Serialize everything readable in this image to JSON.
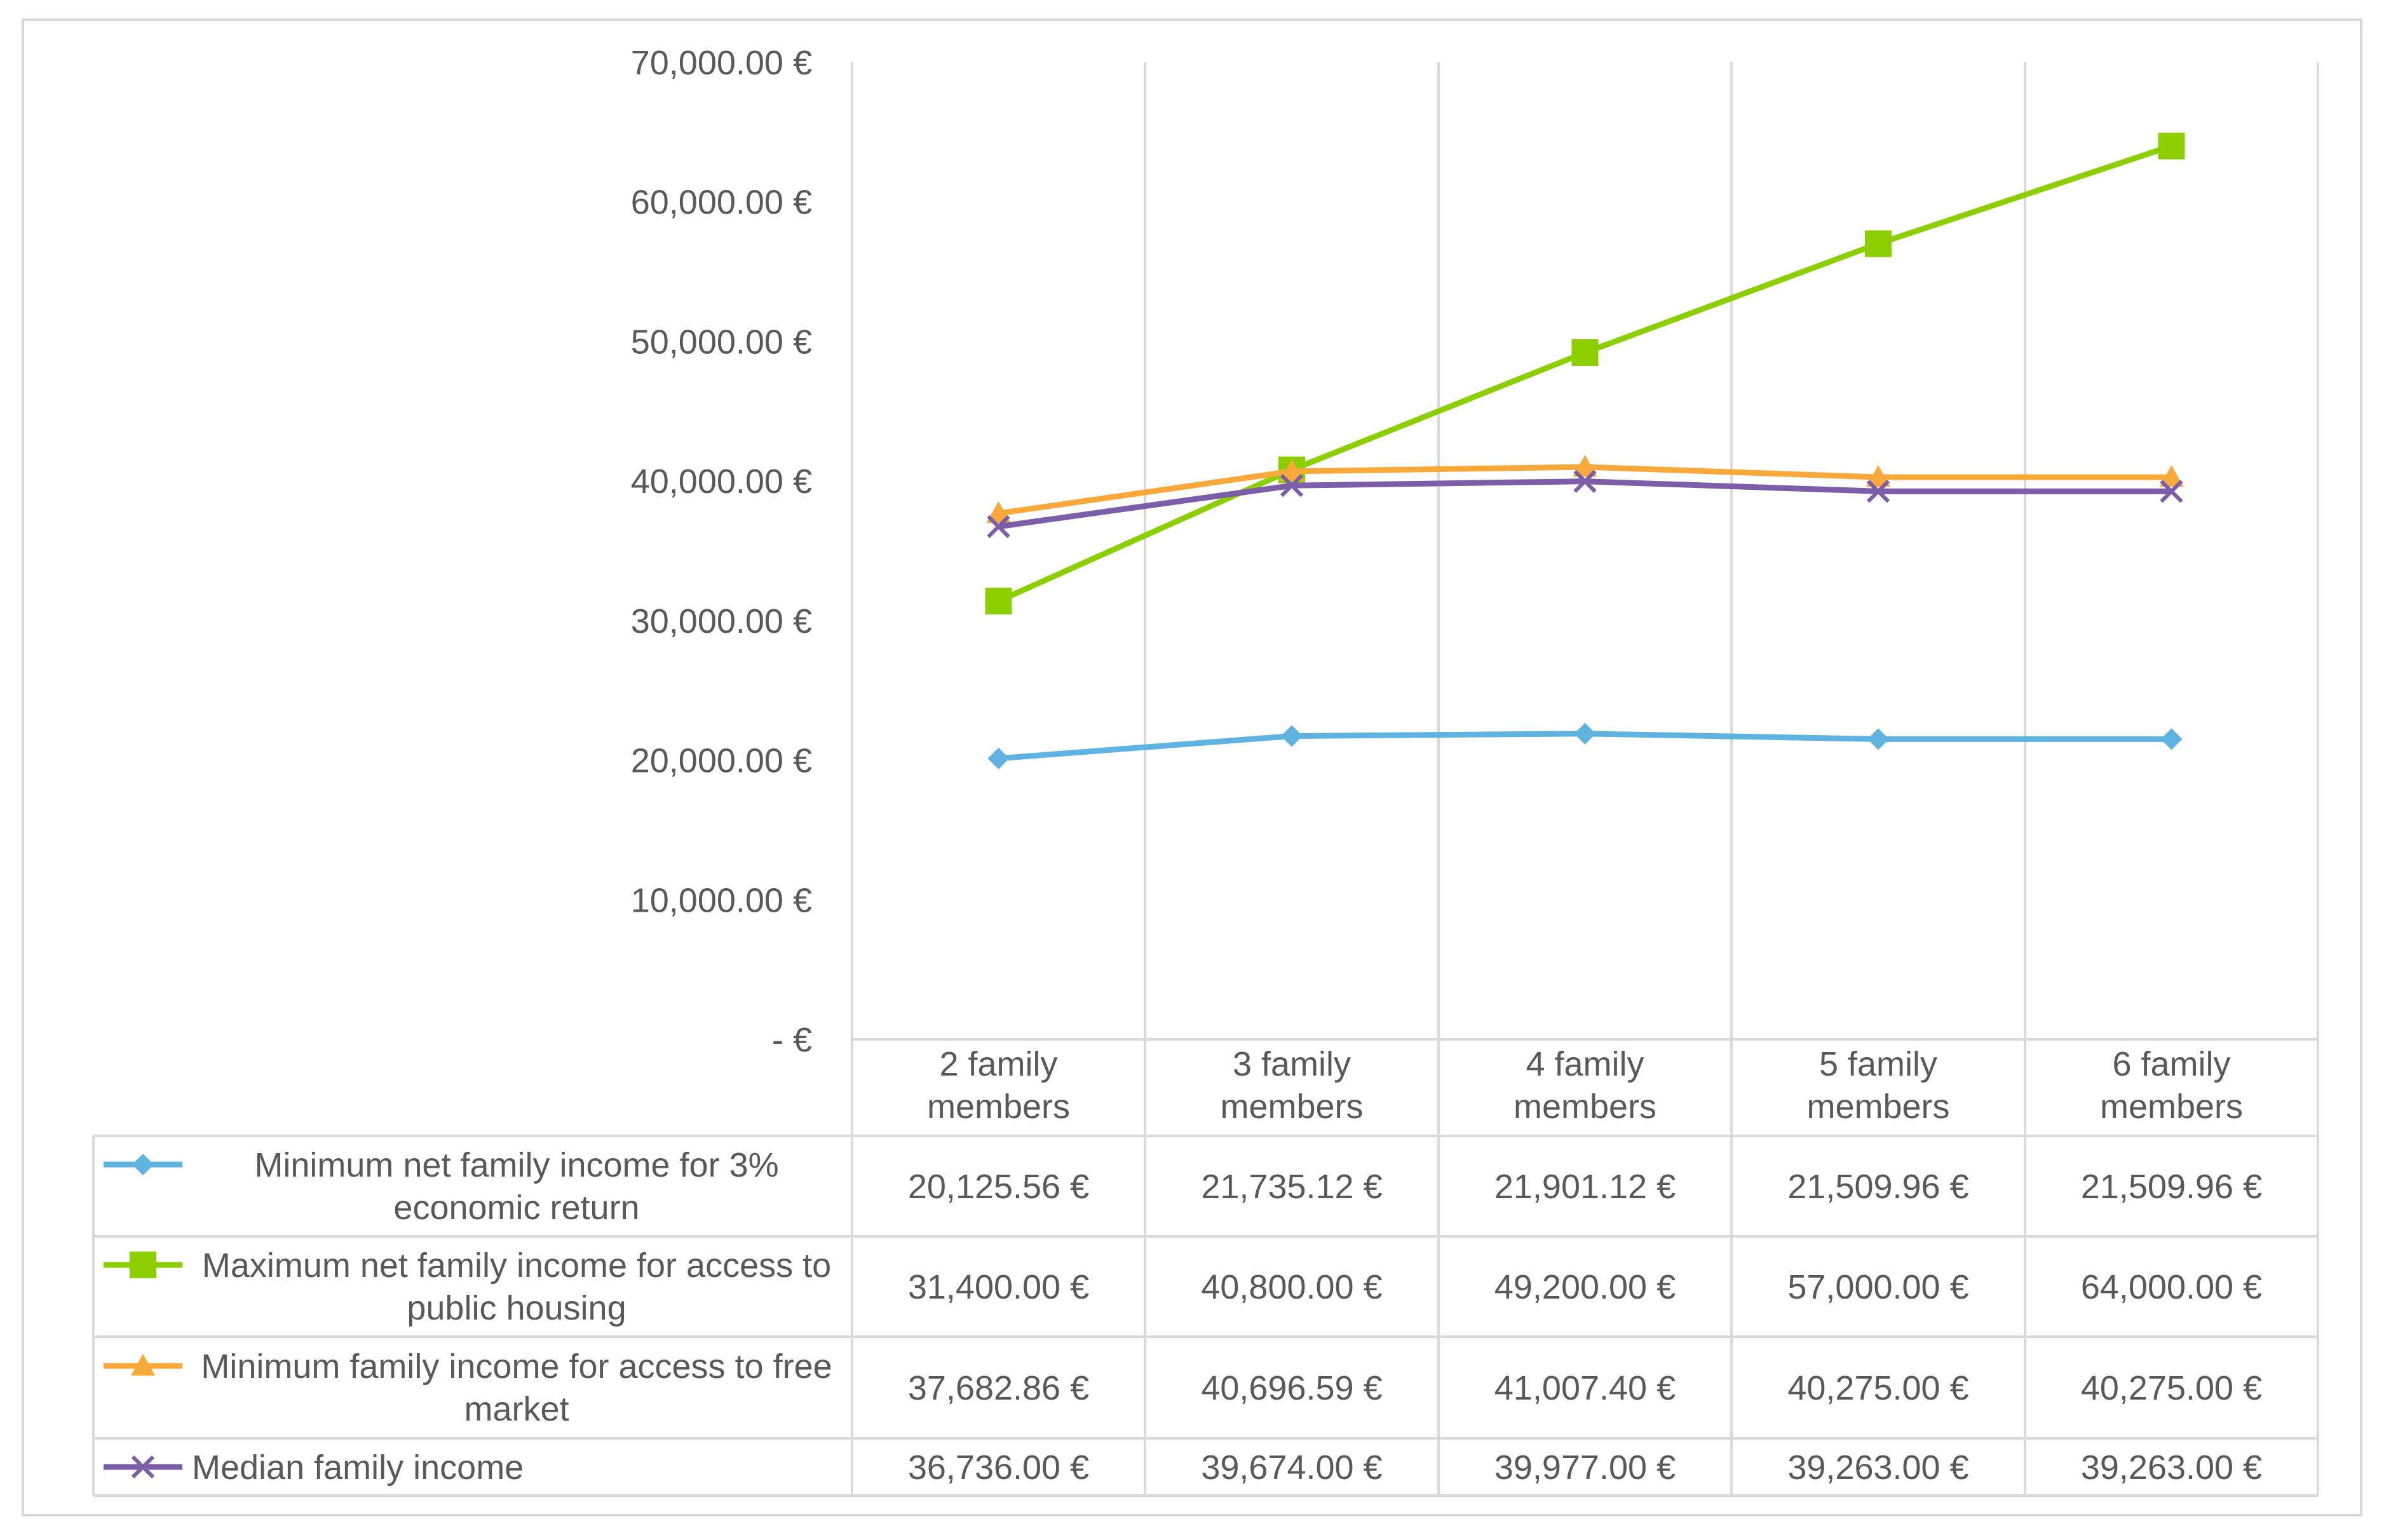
{
  "chart_data": {
    "type": "line",
    "title": "",
    "xlabel": "",
    "ylabel": "",
    "ylim": [
      0,
      70000
    ],
    "y_ticks": [
      "-   €",
      "10,000.00 €",
      "20,000.00 €",
      "30,000.00 €",
      "40,000.00 €",
      "50,000.00 €",
      "60,000.00 €",
      "70,000.00 €"
    ],
    "y_tick_values": [
      0,
      10000,
      20000,
      30000,
      40000,
      50000,
      60000,
      70000
    ],
    "grid": "vertical",
    "legend": "data-table",
    "categories": [
      [
        "2 family",
        "members"
      ],
      [
        "3 family",
        "members"
      ],
      [
        "4 family",
        "members"
      ],
      [
        "5 family",
        "members"
      ],
      [
        "6 family",
        "members"
      ]
    ],
    "series": [
      {
        "name": [
          "Minimum net family income for 3%",
          "economic return"
        ],
        "color": "#5fb3e0",
        "marker": "diamond",
        "values": [
          20125.56,
          21735.12,
          21901.12,
          21509.96,
          21509.96
        ],
        "labels": [
          "20,125.56 €",
          "21,735.12 €",
          "21,901.12 €",
          "21,509.96 €",
          "21,509.96 €"
        ]
      },
      {
        "name": [
          "Maximum net family income for access to",
          "public housing"
        ],
        "color": "#8ccf00",
        "marker": "square",
        "values": [
          31400,
          40800,
          49200,
          57000,
          64000
        ],
        "labels": [
          "31,400.00 €",
          "40,800.00 €",
          "49,200.00 €",
          "57,000.00 €",
          "64,000.00 €"
        ]
      },
      {
        "name": [
          "Minimum family income for access to free",
          "market"
        ],
        "color": "#f9a83a",
        "marker": "triangle",
        "values": [
          37682.86,
          40696.59,
          41007.4,
          40275.0,
          40275.0
        ],
        "labels": [
          "37,682.86 €",
          "40,696.59 €",
          "41,007.40 €",
          "40,275.00 €",
          "40,275.00 €"
        ]
      },
      {
        "name": [
          "Median family income"
        ],
        "color": "#7b5ea7",
        "marker": "x",
        "values": [
          36736,
          39674,
          39977,
          39263,
          39263
        ],
        "labels": [
          "36,736.00 €",
          "39,674.00 €",
          "39,977.00 €",
          "39,263.00 €",
          "39,263.00 €"
        ]
      }
    ]
  }
}
